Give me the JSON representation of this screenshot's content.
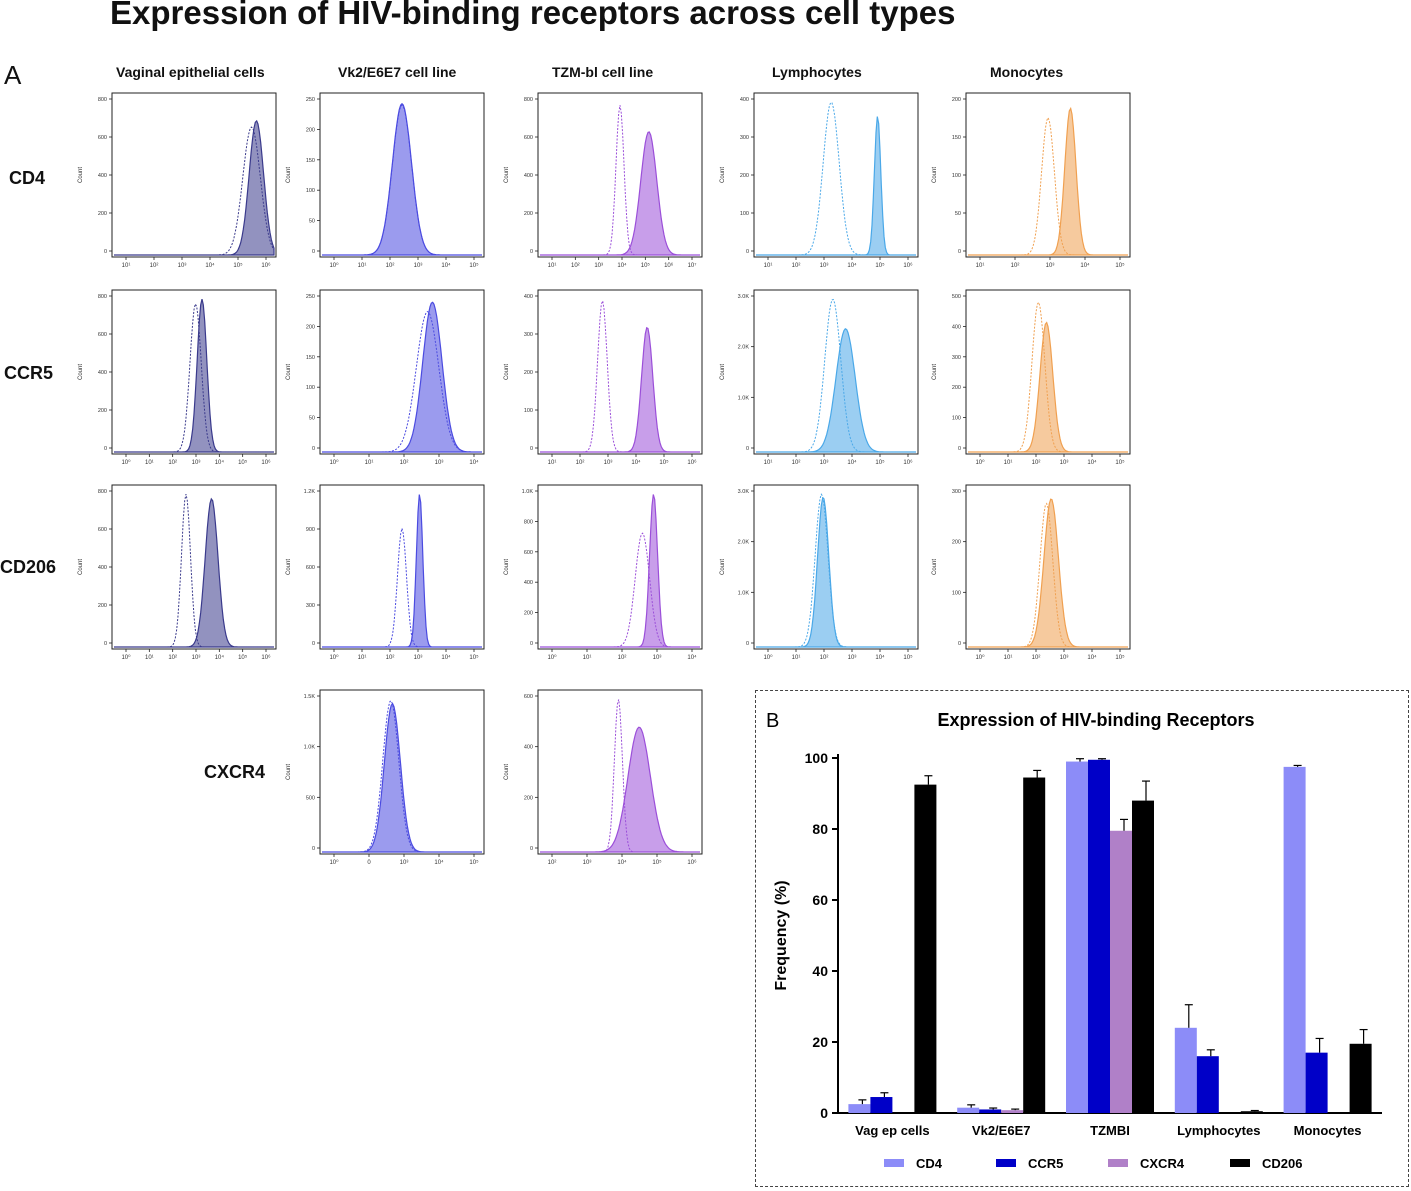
{
  "title": "Expression of HIV-binding receptors across cell types",
  "panel_a": {
    "label": "A",
    "y_axis_label": "Count",
    "columns": [
      "Vaginal epithelial cells",
      "Vk2/E6E7 cell line",
      "TZM-bl cell line",
      "Lymphocytes",
      "Monocytes"
    ],
    "rows": [
      "CD4",
      "CCR5",
      "CD206",
      "CXCR4"
    ],
    "column_colors": [
      "#3a3a8c",
      "#4b4be0",
      "#9b4fd9",
      "#4aa8e8",
      "#f0a050"
    ],
    "histograms": [
      {
        "row": 0,
        "col": 0,
        "yticks": [
          "800",
          "600",
          "400",
          "200",
          "0"
        ],
        "xticks": [
          "10¹",
          "10²",
          "10³",
          "10⁴",
          "10⁵",
          "10⁶"
        ],
        "control_mu": 0.86,
        "control_sd": 0.055,
        "control_h": 0.82,
        "stained_mu": 0.89,
        "stained_sd": 0.045,
        "stained_h": 0.86
      },
      {
        "row": 0,
        "col": 1,
        "yticks": [
          "250",
          "200",
          "150",
          "100",
          "50",
          "0"
        ],
        "xticks": [
          "10⁰",
          "10¹",
          "10²",
          "10³",
          "10⁴",
          "10⁵"
        ],
        "control_mu": 0.5,
        "control_sd": 0.06,
        "control_h": 0.96,
        "stained_mu": 0.5,
        "stained_sd": 0.06,
        "stained_h": 0.97
      },
      {
        "row": 0,
        "col": 2,
        "yticks": [
          "800",
          "600",
          "400",
          "200",
          "0"
        ],
        "xticks": [
          "10¹",
          "10²",
          "10³",
          "10⁴",
          "10⁵",
          "10⁶",
          "10⁷"
        ],
        "control_mu": 0.5,
        "control_sd": 0.025,
        "control_h": 0.96,
        "stained_mu": 0.68,
        "stained_sd": 0.05,
        "stained_h": 0.79
      },
      {
        "row": 0,
        "col": 3,
        "yticks": [
          "400",
          "300",
          "200",
          "100",
          "0"
        ],
        "xticks": [
          "10¹",
          "10²",
          "10³",
          "10⁴",
          "10⁵",
          "10⁶"
        ],
        "control_mu": 0.47,
        "control_sd": 0.05,
        "control_h": 0.98,
        "stained_mu": 0.76,
        "stained_sd": 0.02,
        "stained_h": 0.89
      },
      {
        "row": 0,
        "col": 4,
        "yticks": [
          "200",
          "150",
          "100",
          "50",
          "0"
        ],
        "xticks": [
          "10¹",
          "10²",
          "10³",
          "10⁴",
          "10⁵"
        ],
        "control_mu": 0.5,
        "control_sd": 0.04,
        "control_h": 0.88,
        "stained_mu": 0.64,
        "stained_sd": 0.035,
        "stained_h": 0.94
      },
      {
        "row": 1,
        "col": 0,
        "yticks": [
          "800",
          "600",
          "400",
          "200",
          "0"
        ],
        "xticks": [
          "10⁰",
          "10¹",
          "10²",
          "10³",
          "10⁴",
          "10⁵",
          "10⁶"
        ],
        "control_mu": 0.51,
        "control_sd": 0.035,
        "control_h": 0.95,
        "stained_mu": 0.55,
        "stained_sd": 0.03,
        "stained_h": 0.98
      },
      {
        "row": 1,
        "col": 1,
        "yticks": [
          "250",
          "200",
          "150",
          "100",
          "50",
          "0"
        ],
        "xticks": [
          "10⁰",
          "10¹",
          "10²",
          "10³",
          "10⁴"
        ],
        "control_mu": 0.66,
        "control_sd": 0.07,
        "control_h": 0.9,
        "stained_mu": 0.69,
        "stained_sd": 0.06,
        "stained_h": 0.96
      },
      {
        "row": 1,
        "col": 2,
        "yticks": [
          "400",
          "300",
          "200",
          "100",
          "0"
        ],
        "xticks": [
          "10¹",
          "10²",
          "10³",
          "10⁴",
          "10⁵",
          "10⁶"
        ],
        "control_mu": 0.39,
        "control_sd": 0.03,
        "control_h": 0.97,
        "stained_mu": 0.67,
        "stained_sd": 0.035,
        "stained_h": 0.8
      },
      {
        "row": 1,
        "col": 3,
        "yticks": [
          "3.0K",
          "2.0K",
          "1.0K",
          "0"
        ],
        "xticks": [
          "10¹",
          "10²",
          "10³",
          "10⁴",
          "10⁵",
          "10⁶"
        ],
        "control_mu": 0.48,
        "control_sd": 0.05,
        "control_h": 0.98,
        "stained_mu": 0.56,
        "stained_sd": 0.06,
        "stained_h": 0.79
      },
      {
        "row": 1,
        "col": 4,
        "yticks": [
          "500",
          "400",
          "300",
          "200",
          "100",
          "0"
        ],
        "xticks": [
          "10⁰",
          "10¹",
          "10²",
          "10³",
          "10⁴",
          "10⁵"
        ],
        "control_mu": 0.44,
        "control_sd": 0.04,
        "control_h": 0.96,
        "stained_mu": 0.49,
        "stained_sd": 0.04,
        "stained_h": 0.83
      },
      {
        "row": 2,
        "col": 0,
        "yticks": [
          "800",
          "600",
          "400",
          "200",
          "0"
        ],
        "xticks": [
          "10⁰",
          "10¹",
          "10²",
          "10³",
          "10⁴",
          "10⁵",
          "10⁶"
        ],
        "control_mu": 0.45,
        "control_sd": 0.028,
        "control_h": 0.98,
        "stained_mu": 0.61,
        "stained_sd": 0.04,
        "stained_h": 0.95
      },
      {
        "row": 2,
        "col": 1,
        "yticks": [
          "1.2K",
          "900",
          "600",
          "300",
          "0"
        ],
        "xticks": [
          "10⁰",
          "10¹",
          "10²",
          "10³",
          "10⁴",
          "10⁵"
        ],
        "control_mu": 0.5,
        "control_sd": 0.028,
        "control_h": 0.76,
        "stained_mu": 0.61,
        "stained_sd": 0.02,
        "stained_h": 0.98
      },
      {
        "row": 2,
        "col": 2,
        "yticks": [
          "1.0K",
          "800",
          "600",
          "400",
          "200",
          "0"
        ],
        "xticks": [
          "10⁰",
          "10¹",
          "10²",
          "10³",
          "10⁴"
        ],
        "control_mu": 0.64,
        "control_sd": 0.045,
        "control_h": 0.73,
        "stained_mu": 0.71,
        "stained_sd": 0.025,
        "stained_h": 0.98
      },
      {
        "row": 2,
        "col": 3,
        "yticks": [
          "3.0K",
          "2.0K",
          "1.0K",
          "0"
        ],
        "xticks": [
          "10⁰",
          "10¹",
          "10²",
          "10³",
          "10⁴",
          "10⁵"
        ],
        "control_mu": 0.41,
        "control_sd": 0.04,
        "control_h": 0.98,
        "stained_mu": 0.42,
        "stained_sd": 0.035,
        "stained_h": 0.96
      },
      {
        "row": 2,
        "col": 4,
        "yticks": [
          "300",
          "200",
          "100",
          "0"
        ],
        "xticks": [
          "10⁰",
          "10¹",
          "10²",
          "10³",
          "10⁴",
          "10⁵"
        ],
        "control_mu": 0.49,
        "control_sd": 0.04,
        "control_h": 0.92,
        "stained_mu": 0.52,
        "stained_sd": 0.045,
        "stained_h": 0.95
      },
      {
        "row": 3,
        "col": 1,
        "yticks": [
          "1.5K",
          "1.0K",
          "500",
          "0"
        ],
        "xticks": [
          "10⁰",
          "0",
          "10³",
          "10⁴",
          "10⁵"
        ],
        "control_mu": 0.43,
        "control_sd": 0.05,
        "control_h": 0.97,
        "stained_mu": 0.44,
        "stained_sd": 0.05,
        "stained_h": 0.95
      },
      {
        "row": 3,
        "col": 2,
        "yticks": [
          "600",
          "400",
          "200",
          "0"
        ],
        "xticks": [
          "10²",
          "10³",
          "10⁴",
          "10⁵",
          "10⁶"
        ],
        "control_mu": 0.49,
        "control_sd": 0.025,
        "control_h": 0.98,
        "stained_mu": 0.62,
        "stained_sd": 0.07,
        "stained_h": 0.8
      }
    ]
  },
  "chart_data": {
    "type": "bar",
    "panel_label": "B",
    "title": "Expression of HIV-binding Receptors",
    "xlabel": "",
    "ylabel": "Frequency (%)",
    "ylim": [
      0,
      100
    ],
    "yticks": [
      0,
      20,
      40,
      60,
      80,
      100
    ],
    "categories": [
      "Vag ep cells",
      "Vk2/E6E7",
      "TZMBI",
      "Lymphocytes",
      "Monocytes"
    ],
    "series": [
      {
        "name": "CD4",
        "color": "#8c8cf8",
        "values": [
          2.5,
          1.5,
          99,
          24,
          97.5
        ],
        "errors": [
          1.2,
          0.8,
          0.8,
          6.5,
          0.4
        ]
      },
      {
        "name": "CCR5",
        "color": "#0000c8",
        "values": [
          4.5,
          1.0,
          99.5,
          16,
          17
        ],
        "errors": [
          1.2,
          0.4,
          0.3,
          1.8,
          4.0
        ]
      },
      {
        "name": "CXCR4",
        "color": "#b080c8",
        "values": [
          null,
          0.8,
          79.5,
          null,
          null
        ],
        "errors": [
          null,
          0.3,
          3.2,
          null,
          null
        ]
      },
      {
        "name": "CD206",
        "color": "#000000",
        "values": [
          92.5,
          94.5,
          88,
          0.5,
          19.5
        ],
        "errors": [
          2.5,
          2.0,
          5.5,
          0.2,
          4.0
        ]
      }
    ]
  }
}
